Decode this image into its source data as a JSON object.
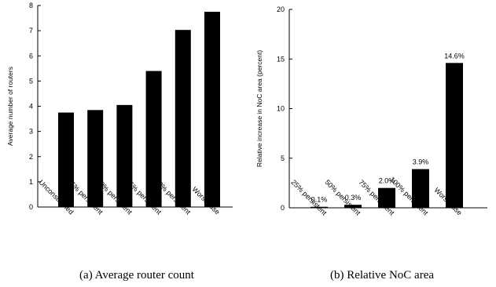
{
  "chart_data": [
    {
      "type": "bar",
      "caption": "(a)  Average router count",
      "ylabel": "Average number of routers",
      "xlabel": "",
      "categories": [
        "Unconstrained",
        "25% persistent",
        "50% persistent",
        "75% persistent",
        "100% persistent",
        "Worst-case"
      ],
      "values": [
        3.75,
        3.85,
        4.05,
        5.4,
        7.03,
        7.75
      ],
      "ylim": [
        0,
        8
      ],
      "yticks": [
        "0",
        "1",
        "2",
        "3",
        "4",
        "5",
        "6",
        "7",
        "8"
      ],
      "grid": false,
      "colors": {
        "bar": "#000000"
      }
    },
    {
      "type": "bar",
      "caption": "(b)  Relative NoC area",
      "ylabel": "Relative increase in NoC area (percent)",
      "xlabel": "",
      "categories": [
        "25% persistent",
        "50% persistent",
        "75% persistent",
        "100% persistent",
        "Worst-case"
      ],
      "values": [
        0.1,
        0.3,
        2.0,
        3.9,
        14.6
      ],
      "data_labels": [
        "0.1%",
        "0.3%",
        "2.0%",
        "3.9%",
        "14.6%"
      ],
      "ylim": [
        0,
        20
      ],
      "yticks": [
        "0",
        "5",
        "10",
        "15",
        "20"
      ],
      "grid": false,
      "colors": {
        "bar": "#000000"
      }
    }
  ]
}
